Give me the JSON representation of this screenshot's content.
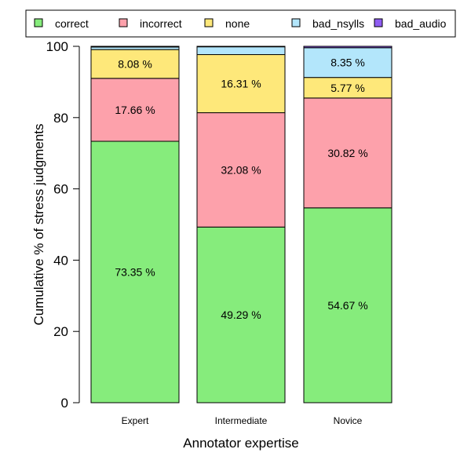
{
  "chart_data": {
    "type": "bar",
    "stacked": true,
    "title": "",
    "xlabel": "Annotator expertise",
    "ylabel": "Cumulative % of stress judgments",
    "ylim": [
      0,
      100
    ],
    "yticks": [
      "0",
      "20",
      "40",
      "60",
      "80",
      "100"
    ],
    "grid": false,
    "legend_position": "top",
    "categories": [
      "Expert",
      "Intermediate",
      "Novice"
    ],
    "series": [
      {
        "name": "correct",
        "color": "#86ec7c",
        "values": [
          73.35,
          49.29,
          54.67
        ],
        "labels": [
          "73.35 %",
          "49.29 %",
          "54.67 %"
        ]
      },
      {
        "name": "incorrect",
        "color": "#fda1ab",
        "values": [
          17.66,
          32.08,
          30.82
        ],
        "labels": [
          "17.66 %",
          "32.08 %",
          "30.82 %"
        ]
      },
      {
        "name": "none",
        "color": "#fee87a",
        "values": [
          8.08,
          16.31,
          5.77
        ],
        "labels": [
          "8.08 %",
          "16.31 %",
          "5.77 %"
        ]
      },
      {
        "name": "bad_nsylls",
        "color": "#b3e6fb",
        "values": [
          0.71,
          2.18,
          8.35
        ],
        "labels": [
          "",
          "",
          "8.35 %"
        ]
      },
      {
        "name": "bad_audio",
        "color": "#8f5df2",
        "values": [
          0.2,
          0.14,
          0.39
        ],
        "labels": [
          "",
          "",
          ""
        ]
      }
    ]
  }
}
